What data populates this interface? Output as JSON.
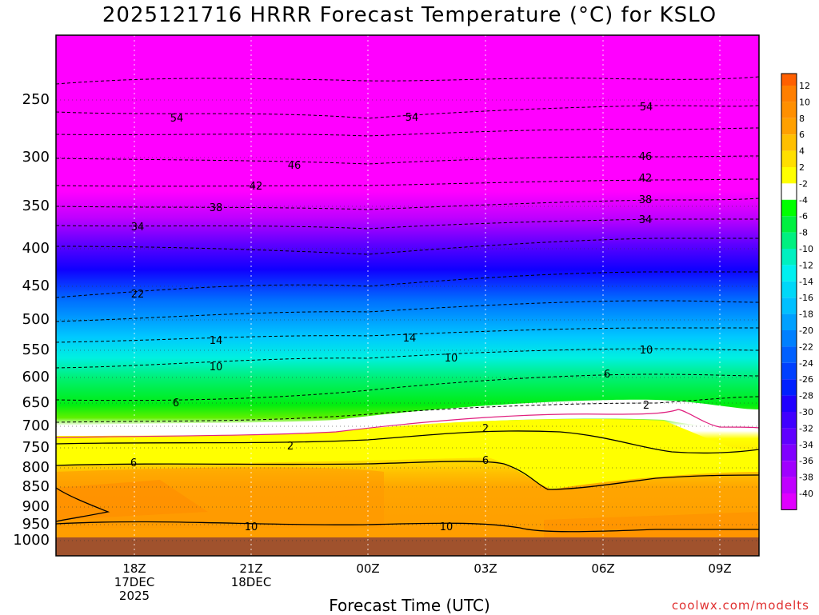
{
  "title": "2025121716 HRRR Forecast Temperature (°C) for KSLO",
  "xlabel": "Forecast Time (UTC)",
  "credit": "coolwx.com/modelts",
  "colors": {
    "ground": "#a0522d",
    "pink_zero_line": "#e0207f"
  },
  "chart_data": {
    "type": "heatmap",
    "title": "2025121716 HRRR Forecast Temperature (°C) for KSLO",
    "xlabel": "Forecast Time (UTC)",
    "ylabel": "",
    "y_axis": "pressure (hPa), reversed",
    "y_ticks": [
      "250",
      "300",
      "350",
      "400",
      "450",
      "500",
      "550",
      "600",
      "650",
      "700",
      "750",
      "800",
      "850",
      "900",
      "950",
      "1000"
    ],
    "x_ticks": [
      {
        "label": "18Z",
        "sub1": "17DEC",
        "sub2": "2025"
      },
      {
        "label": "21Z",
        "sub1": "18DEC",
        "sub2": ""
      },
      {
        "label": "00Z",
        "sub1": "",
        "sub2": ""
      },
      {
        "label": "03Z",
        "sub1": "",
        "sub2": ""
      },
      {
        "label": "06Z",
        "sub1": "",
        "sub2": ""
      },
      {
        "label": "09Z",
        "sub1": "",
        "sub2": ""
      }
    ],
    "colorbar": [
      {
        "label": "12",
        "color": "#ff7f00"
      },
      {
        "label": "10",
        "color": "#ff8f00"
      },
      {
        "label": "8",
        "color": "#ffa000"
      },
      {
        "label": "6",
        "color": "#ffbf00"
      },
      {
        "label": "4",
        "color": "#ffdf00"
      },
      {
        "label": "2",
        "color": "#ffff00"
      },
      {
        "label": "-2",
        "color": "#ffffff"
      },
      {
        "label": "-4",
        "color": "#00ff00"
      },
      {
        "label": "-6",
        "color": "#00f040"
      },
      {
        "label": "-8",
        "color": "#00f080"
      },
      {
        "label": "-10",
        "color": "#00f0c0"
      },
      {
        "label": "-12",
        "color": "#00f0f0"
      },
      {
        "label": "-14",
        "color": "#00d8f8"
      },
      {
        "label": "-16",
        "color": "#00c0ff"
      },
      {
        "label": "-18",
        "color": "#00a0ff"
      },
      {
        "label": "-20",
        "color": "#0080ff"
      },
      {
        "label": "-22",
        "color": "#0060ff"
      },
      {
        "label": "-24",
        "color": "#0040ff"
      },
      {
        "label": "-26",
        "color": "#0020ff"
      },
      {
        "label": "-28",
        "color": "#2000ff"
      },
      {
        "label": "-30",
        "color": "#4000ff"
      },
      {
        "label": "-32",
        "color": "#6000ff"
      },
      {
        "label": "-34",
        "color": "#8000ff"
      },
      {
        "label": "-36",
        "color": "#a000ff"
      },
      {
        "label": "-38",
        "color": "#c000ff"
      },
      {
        "label": "-40",
        "color": "#e000ff"
      }
    ],
    "colorbar_top": "#ff6000",
    "colorbar_bottom": "#ff00ff",
    "contour_labels": [
      "54",
      "54",
      "54",
      "46",
      "46",
      "42",
      "42",
      "38",
      "38",
      "34",
      "34",
      "22",
      "14",
      "14",
      "10",
      "10",
      "10",
      "6",
      "6",
      "2",
      "2",
      "2",
      "6",
      "6",
      "10",
      "10"
    ]
  }
}
